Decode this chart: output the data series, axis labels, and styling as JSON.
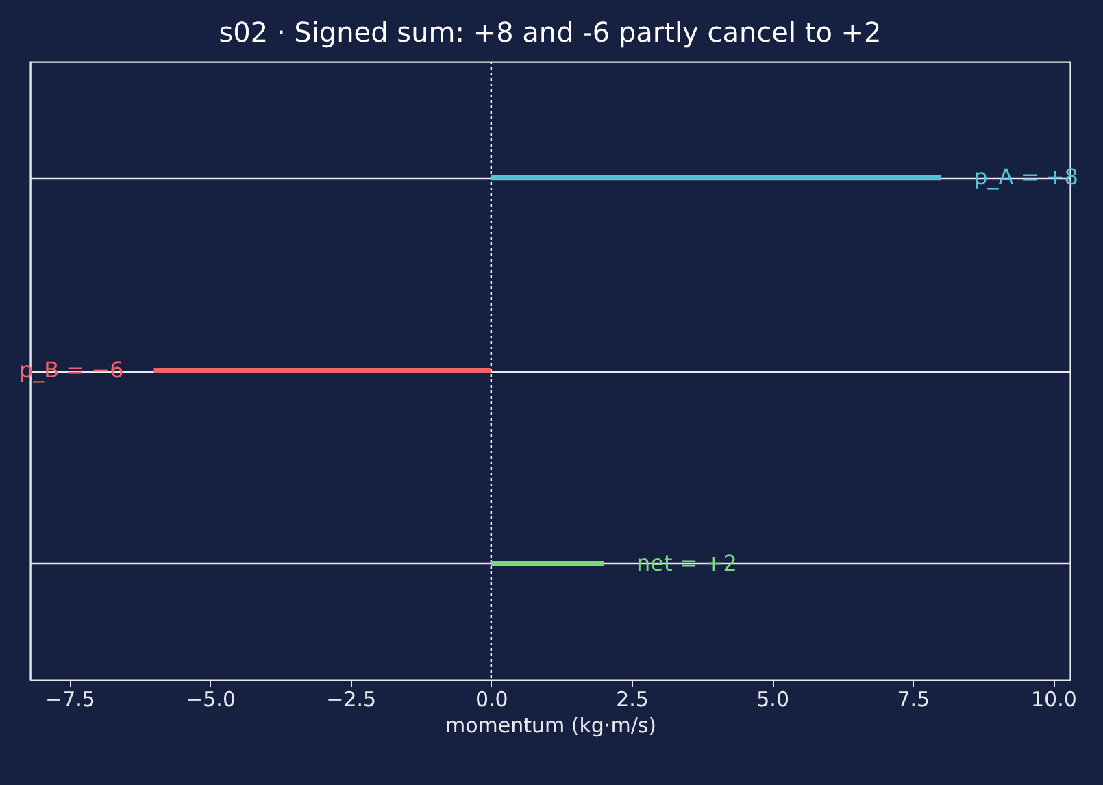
{
  "chart_data": {
    "type": "bar",
    "orientation": "horizontal",
    "title": "s02 · Signed sum: +8 and -6 partly cancel to +2",
    "xlabel": "momentum  (kg·m/s)",
    "categories": [
      null,
      null,
      null
    ],
    "values": [
      8,
      -6,
      2
    ],
    "colors": [
      "#56c3d9",
      "#f0646a",
      "#7dd87a"
    ],
    "value_labels": [
      "p_A = +8",
      "p_B = −6",
      "net = +2"
    ],
    "xlim": [
      -8.2,
      10.3
    ],
    "xticks": [
      {
        "value": -7.5,
        "label": "−7.5"
      },
      {
        "value": -5,
        "label": "−5.0"
      },
      {
        "value": -2.5,
        "label": "−2.5"
      },
      {
        "value": 0,
        "label": "0.0"
      },
      {
        "value": 2.5,
        "label": "2.5"
      },
      {
        "value": 5,
        "label": "5.0"
      },
      {
        "value": 7.5,
        "label": "7.5"
      },
      {
        "value": 10,
        "label": "10.0"
      }
    ],
    "ref_lines": [
      {
        "axis": "x",
        "value": 0,
        "color": "#ffffff",
        "line_style": "dotted"
      }
    ],
    "grid": "y",
    "tick_labels": "x",
    "legend": false
  }
}
